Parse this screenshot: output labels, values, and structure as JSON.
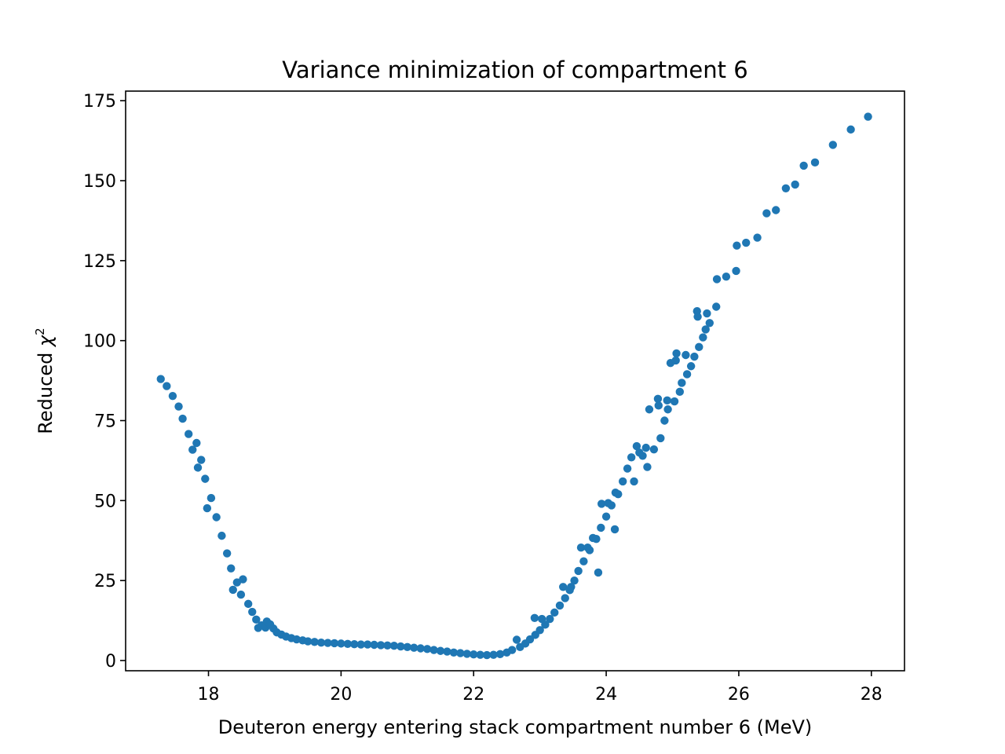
{
  "chart_data": {
    "type": "scatter",
    "title": "Variance minimization of compartment 6",
    "xlabel": "Deuteron energy entering stack compartment number 6 (MeV)",
    "ylabel_text": "Reduced ",
    "ylabel_symbol": "χ",
    "ylabel_superscript": "2",
    "xlim": [
      16.75,
      28.5
    ],
    "ylim": [
      -3.2,
      178
    ],
    "xticks": [
      18,
      20,
      22,
      24,
      26,
      28
    ],
    "yticks": [
      0,
      25,
      50,
      75,
      100,
      125,
      150,
      175
    ],
    "grid": false,
    "marker_color": "#1f77b4",
    "series": [
      {
        "points": [
          [
            17.28,
            88.0
          ],
          [
            17.37,
            85.8
          ],
          [
            17.46,
            82.7
          ],
          [
            17.55,
            79.4
          ],
          [
            17.61,
            75.6
          ],
          [
            17.7,
            70.8
          ],
          [
            17.76,
            65.9
          ],
          [
            17.82,
            68.0
          ],
          [
            17.84,
            60.3
          ],
          [
            17.89,
            62.7
          ],
          [
            17.95,
            56.8
          ],
          [
            17.98,
            47.6
          ],
          [
            18.04,
            50.8
          ],
          [
            18.12,
            44.8
          ],
          [
            18.2,
            39.0
          ],
          [
            18.28,
            33.5
          ],
          [
            18.34,
            28.8
          ],
          [
            18.37,
            22.1
          ],
          [
            18.43,
            24.4
          ],
          [
            18.49,
            20.6
          ],
          [
            18.52,
            25.4
          ],
          [
            18.6,
            17.7
          ],
          [
            18.66,
            15.2
          ],
          [
            18.72,
            12.8
          ],
          [
            18.75,
            10.2
          ],
          [
            18.8,
            11.0
          ],
          [
            18.86,
            10.3
          ],
          [
            18.88,
            12.2
          ],
          [
            18.93,
            11.3
          ],
          [
            18.98,
            10.0
          ],
          [
            19.03,
            8.8
          ],
          [
            19.1,
            8.1
          ],
          [
            19.17,
            7.5
          ],
          [
            19.25,
            7.0
          ],
          [
            19.33,
            6.6
          ],
          [
            19.42,
            6.3
          ],
          [
            19.5,
            6.0
          ],
          [
            19.6,
            5.8
          ],
          [
            19.7,
            5.6
          ],
          [
            19.8,
            5.5
          ],
          [
            19.9,
            5.4
          ],
          [
            20.0,
            5.3
          ],
          [
            20.1,
            5.2
          ],
          [
            20.2,
            5.1
          ],
          [
            20.3,
            5.0
          ],
          [
            20.4,
            5.0
          ],
          [
            20.5,
            4.9
          ],
          [
            20.6,
            4.8
          ],
          [
            20.7,
            4.7
          ],
          [
            20.8,
            4.6
          ],
          [
            20.9,
            4.4
          ],
          [
            21.0,
            4.2
          ],
          [
            21.1,
            4.0
          ],
          [
            21.2,
            3.8
          ],
          [
            21.3,
            3.6
          ],
          [
            21.4,
            3.3
          ],
          [
            21.5,
            3.0
          ],
          [
            21.6,
            2.8
          ],
          [
            21.7,
            2.5
          ],
          [
            21.8,
            2.3
          ],
          [
            21.9,
            2.1
          ],
          [
            22.0,
            1.9
          ],
          [
            22.1,
            1.8
          ],
          [
            22.2,
            1.7
          ],
          [
            22.3,
            1.8
          ],
          [
            22.4,
            2.0
          ],
          [
            22.5,
            2.5
          ],
          [
            22.58,
            3.3
          ],
          [
            22.65,
            6.5
          ],
          [
            22.7,
            4.2
          ],
          [
            22.78,
            5.3
          ],
          [
            22.85,
            6.6
          ],
          [
            22.92,
            13.3
          ],
          [
            22.93,
            8.0
          ],
          [
            23.0,
            9.5
          ],
          [
            23.03,
            13.0
          ],
          [
            23.08,
            11.2
          ],
          [
            23.15,
            13.0
          ],
          [
            23.22,
            15.0
          ],
          [
            23.3,
            17.2
          ],
          [
            23.35,
            23.0
          ],
          [
            23.38,
            19.5
          ],
          [
            23.45,
            22.0
          ],
          [
            23.47,
            23.0
          ],
          [
            23.52,
            25.0
          ],
          [
            23.58,
            28.0
          ],
          [
            23.62,
            35.3
          ],
          [
            23.66,
            31.0
          ],
          [
            23.72,
            35.3
          ],
          [
            23.75,
            34.5
          ],
          [
            23.8,
            38.3
          ],
          [
            23.85,
            38.0
          ],
          [
            23.88,
            27.5
          ],
          [
            23.92,
            41.5
          ],
          [
            23.93,
            49.0
          ],
          [
            24.0,
            45.0
          ],
          [
            24.03,
            49.2
          ],
          [
            24.08,
            48.5
          ],
          [
            24.13,
            41.0
          ],
          [
            24.14,
            52.5
          ],
          [
            24.18,
            52.0
          ],
          [
            24.25,
            56.0
          ],
          [
            24.32,
            60.0
          ],
          [
            24.38,
            63.5
          ],
          [
            24.42,
            56.0
          ],
          [
            24.46,
            67.0
          ],
          [
            24.5,
            65.0
          ],
          [
            24.55,
            64.0
          ],
          [
            24.6,
            66.5
          ],
          [
            24.62,
            60.5
          ],
          [
            24.65,
            78.5
          ],
          [
            24.72,
            66.0
          ],
          [
            24.78,
            81.8
          ],
          [
            24.79,
            79.7
          ],
          [
            24.82,
            69.5
          ],
          [
            24.88,
            75.0
          ],
          [
            24.92,
            81.3
          ],
          [
            24.93,
            78.5
          ],
          [
            24.97,
            93.0
          ],
          [
            25.03,
            81.0
          ],
          [
            25.05,
            93.8
          ],
          [
            25.06,
            96.0
          ],
          [
            25.11,
            84.0
          ],
          [
            25.14,
            86.8
          ],
          [
            25.2,
            95.5
          ],
          [
            25.22,
            89.5
          ],
          [
            25.28,
            92.0
          ],
          [
            25.33,
            95.0
          ],
          [
            25.37,
            109.2
          ],
          [
            25.38,
            107.5
          ],
          [
            25.4,
            98.0
          ],
          [
            25.46,
            101.0
          ],
          [
            25.5,
            103.5
          ],
          [
            25.52,
            108.5
          ],
          [
            25.56,
            105.5
          ],
          [
            25.66,
            110.6
          ],
          [
            25.67,
            119.2
          ],
          [
            25.81,
            120.0
          ],
          [
            25.96,
            121.8
          ],
          [
            25.97,
            129.7
          ],
          [
            26.11,
            130.6
          ],
          [
            26.28,
            132.2
          ],
          [
            26.42,
            139.8
          ],
          [
            26.56,
            140.8
          ],
          [
            26.71,
            147.6
          ],
          [
            26.85,
            148.8
          ],
          [
            26.98,
            154.7
          ],
          [
            27.15,
            155.7
          ],
          [
            27.42,
            161.2
          ],
          [
            27.69,
            166.0
          ],
          [
            27.95,
            170.0
          ]
        ]
      }
    ]
  }
}
